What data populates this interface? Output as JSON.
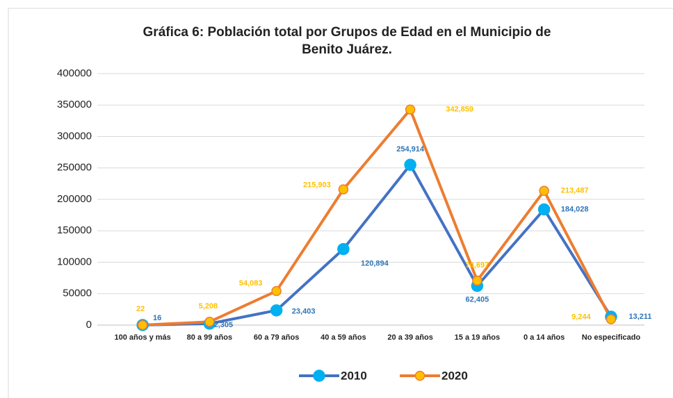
{
  "chart_data": {
    "type": "line",
    "title": "Gráfica 6: Población total por Grupos de Edad en el Municipio de Benito Juárez.",
    "categories": [
      "100 años y más",
      "80 a 99 años",
      "60 a 79 años",
      "40 a 59 años",
      "20 a 39 años",
      "15 a 19 años",
      "0 a 14 años",
      "No especificado"
    ],
    "series": [
      {
        "name": "2010",
        "color": "#4472c4",
        "marker_color": "#00b0f0",
        "label_color": "#2e75b6",
        "values": [
          16,
          2305,
          23403,
          120894,
          254914,
          62405,
          184028,
          13211
        ],
        "value_labels": [
          "16",
          "2,305",
          "23,403",
          "120,894",
          "254,914",
          "62,405",
          "184,028",
          "13,211"
        ]
      },
      {
        "name": "2020",
        "color": "#ed7d31",
        "marker_color": "#ffc000",
        "label_color": "#ffc000",
        "values": [
          22,
          5208,
          54083,
          215903,
          342859,
          70697,
          213487,
          9244
        ],
        "value_labels": [
          "22",
          "5,208",
          "54,083",
          "215,903",
          "342,859",
          "70,697",
          "213,487",
          "9,244"
        ]
      }
    ],
    "ylim": [
      0,
      400000
    ],
    "yticks": [
      0,
      50000,
      100000,
      150000,
      200000,
      250000,
      300000,
      350000,
      400000
    ],
    "grid": true,
    "legend": "bottom"
  }
}
